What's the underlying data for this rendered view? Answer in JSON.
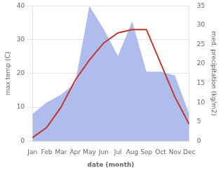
{
  "chart_data": {
    "type": "line",
    "xlabel": "date (month)",
    "ylabel": "max temp (C)",
    "y2label": "med. precipitation (kg/m2)",
    "categories": [
      "Jan",
      "Feb",
      "Mar",
      "Apr",
      "May",
      "Jun",
      "Jul",
      "Aug",
      "Sep",
      "Oct",
      "Nov",
      "Dec"
    ],
    "series": [
      {
        "type": "area",
        "axis": "y2",
        "color": "#b0bcee",
        "values": [
          7,
          10,
          12,
          15,
          35,
          29,
          22,
          31,
          18,
          18,
          17,
          7
        ]
      },
      {
        "type": "line",
        "color": "#c0392b",
        "values": [
          1,
          4,
          10,
          18,
          24,
          29,
          32,
          33,
          33,
          23,
          13,
          5
        ]
      }
    ],
    "ylim": [
      0,
      40
    ],
    "yticks": [
      0,
      10,
      20,
      30,
      40
    ],
    "y2lim": [
      0,
      35
    ],
    "y2ticks": [
      0,
      5,
      10,
      15,
      20,
      25,
      30,
      35
    ],
    "grid": true
  }
}
